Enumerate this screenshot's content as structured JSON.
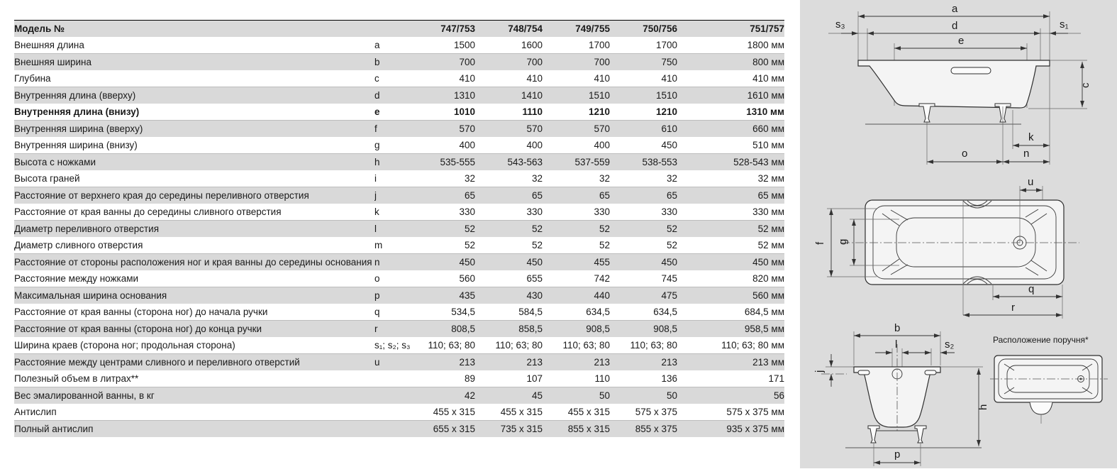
{
  "table": {
    "header_label": "Модель №",
    "models": [
      "747/753",
      "748/754",
      "749/755",
      "750/756",
      "751/757"
    ],
    "rows": [
      {
        "label": "Внешняя длина",
        "sym": "a",
        "values": [
          "1500",
          "1600",
          "1700",
          "1700",
          "1800 мм"
        ],
        "bold": false
      },
      {
        "label": "Внешняя ширина",
        "sym": "b",
        "values": [
          "700",
          "700",
          "700",
          "750",
          "800 мм"
        ],
        "bold": false
      },
      {
        "label": "Глубина",
        "sym": "c",
        "values": [
          "410",
          "410",
          "410",
          "410",
          "410 мм"
        ],
        "bold": false
      },
      {
        "label": "Внутренняя длина (вверху)",
        "sym": "d",
        "values": [
          "1310",
          "1410",
          "1510",
          "1510",
          "1610 мм"
        ],
        "bold": false
      },
      {
        "label": "Внутренняя длина (внизу)",
        "sym": "e",
        "values": [
          "1010",
          "1110",
          "1210",
          "1210",
          "1310 мм"
        ],
        "bold": true
      },
      {
        "label": "Внутренняя ширина (вверху)",
        "sym": "f",
        "values": [
          "570",
          "570",
          "570",
          "610",
          "660 мм"
        ],
        "bold": false
      },
      {
        "label": "Внутренняя ширина (внизу)",
        "sym": "g",
        "values": [
          "400",
          "400",
          "400",
          "450",
          "510 мм"
        ],
        "bold": false
      },
      {
        "label": "Высота с ножками",
        "sym": "h",
        "values": [
          "535-555",
          "543-563",
          "537-559",
          "538-553",
          "528-543 мм"
        ],
        "bold": false
      },
      {
        "label": "Высота граней",
        "sym": "i",
        "values": [
          "32",
          "32",
          "32",
          "32",
          "32 мм"
        ],
        "bold": false
      },
      {
        "label": "Расстояние от верхнего края до середины переливного отверстия",
        "sym": "j",
        "values": [
          "65",
          "65",
          "65",
          "65",
          "65 мм"
        ],
        "bold": false
      },
      {
        "label": "Расстояние от края ванны до середины сливного отверстия",
        "sym": "k",
        "values": [
          "330",
          "330",
          "330",
          "330",
          "330 мм"
        ],
        "bold": false
      },
      {
        "label": "Диаметр переливного отверстия",
        "sym": "l",
        "values": [
          "52",
          "52",
          "52",
          "52",
          "52 мм"
        ],
        "bold": false
      },
      {
        "label": "Диаметр сливного отверстия",
        "sym": "m",
        "values": [
          "52",
          "52",
          "52",
          "52",
          "52 мм"
        ],
        "bold": false
      },
      {
        "label": "Расстояние от стороны расположения ног и края ванны до середины основания",
        "sym": "n",
        "values": [
          "450",
          "450",
          "455",
          "450",
          "450 мм"
        ],
        "bold": false
      },
      {
        "label": "Расстояние между ножками",
        "sym": "o",
        "values": [
          "560",
          "655",
          "742",
          "745",
          "820 мм"
        ],
        "bold": false
      },
      {
        "label": "Максимальная ширина основания",
        "sym": "p",
        "values": [
          "435",
          "430",
          "440",
          "475",
          "560 мм"
        ],
        "bold": false
      },
      {
        "label": "Расстояние от края ванны (сторона ног) до начала ручки",
        "sym": "q",
        "values": [
          "534,5",
          "584,5",
          "634,5",
          "634,5",
          "684,5 мм"
        ],
        "bold": false
      },
      {
        "label": "Расстояние от края ванны (сторона ног) до конца ручки",
        "sym": "r",
        "values": [
          "808,5",
          "858,5",
          "908,5",
          "908,5",
          "958,5 мм"
        ],
        "bold": false
      },
      {
        "label": "Ширина краев (сторона ног; продольная сторона)",
        "sym": "s₁; s₂; s₃",
        "values": [
          "110; 63; 80",
          "110; 63; 80",
          "110; 63; 80",
          "110; 63; 80",
          "110; 63; 80 мм"
        ],
        "bold": false
      },
      {
        "label": "Расстояние между центрами сливного и переливного отверстий",
        "sym": "u",
        "values": [
          "213",
          "213",
          "213",
          "213",
          "213 мм"
        ],
        "bold": false
      },
      {
        "label": "Полезный объем в литрах**",
        "sym": "",
        "values": [
          "89",
          "107",
          "110",
          "136",
          "171"
        ],
        "bold": false
      },
      {
        "label": "Вес эмалированной ванны, в кг",
        "sym": "",
        "values": [
          "42",
          "45",
          "50",
          "50",
          "56"
        ],
        "bold": false
      },
      {
        "label": "Антислип",
        "sym": "",
        "values": [
          "455 x 315",
          "455 x 315",
          "455 x 315",
          "575 x 375",
          "575 x 375 мм"
        ],
        "bold": false
      },
      {
        "label": "Полный антислип",
        "sym": "",
        "values": [
          "655 x 315",
          "735 x 315",
          "855 x 315",
          "855 x 375",
          "935 x 375 мм"
        ],
        "bold": false
      }
    ]
  },
  "diagrams": {
    "side": {
      "a": "a",
      "d": "d",
      "e": "e",
      "s3": "s₃",
      "s1": "s₁",
      "c": "c",
      "k": "k",
      "o": "o",
      "n": "n"
    },
    "top": {
      "u": "u",
      "f": "f",
      "g": "g",
      "q": "q",
      "r": "r"
    },
    "end": {
      "b": "b",
      "l": "l",
      "s2": "s₂",
      "j": "j",
      "h": "h",
      "p": "p"
    },
    "handle": {
      "caption": "Расположение поручня*"
    }
  }
}
